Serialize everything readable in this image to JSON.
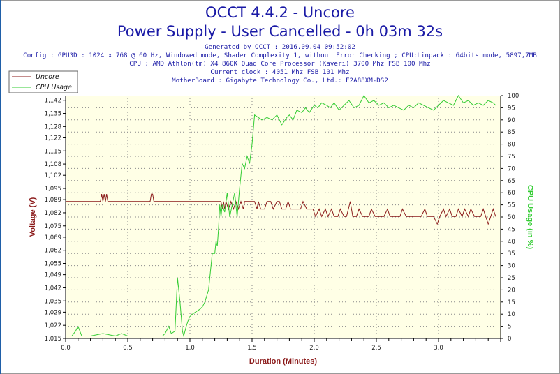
{
  "header": {
    "title": "OCCT 4.4.2 - Uncore",
    "subtitle": "Power Supply - User Cancelled - 0h 03m 32s",
    "generated": "Generated by OCCT : 2016.09.04 09:52:02",
    "config": "Config : GPU3D : 1024 x 768 @ 60 Hz, Windowed mode, Shader Complexity 1, without Error Checking ; CPU:Linpack : 64bits mode, 5897,7MB",
    "cpu": "CPU : AMD Athlon(tm) X4 860K Quad Core Processor (Kaveri) 3700 Mhz FSB 100 Mhz",
    "clock": "Current clock : 4051 Mhz FSB 101 Mhz",
    "motherboard": "MotherBoard : Gigabyte Technology Co., Ltd.: F2A88XM-DS2"
  },
  "colors": {
    "uncore": "#8b1a1a",
    "cpu_usage": "#33cc33",
    "title": "#1a1aa6",
    "plot_background": "#ffffe6"
  },
  "chart_data": {
    "type": "line",
    "xlabel": "Duration (Minutes)",
    "ylabel_left": "Voltage (V)",
    "ylabel_right": "CPU Usage (in %)",
    "xlim": [
      0,
      3.5
    ],
    "ylim_left": [
      1.015,
      1.1445
    ],
    "ylim_right": [
      0,
      100
    ],
    "x_ticks": [
      "0,0",
      "0,5",
      "1,0",
      "1,5",
      "2,0",
      "2,5",
      "3,0"
    ],
    "y_left_ticks": [
      "1,015",
      "1,022",
      "1,029",
      "1,035",
      "1,042",
      "1,049",
      "1,055",
      "1,062",
      "1,069",
      "1,075",
      "1,082",
      "1,089",
      "1,095",
      "1,102",
      "1,108",
      "1,115",
      "1,122",
      "1,128",
      "1,135",
      "1,142"
    ],
    "y_right_ticks": [
      "0",
      "5",
      "10",
      "15",
      "20",
      "25",
      "30",
      "35",
      "40",
      "45",
      "50",
      "55",
      "60",
      "65",
      "70",
      "75",
      "80",
      "85",
      "90",
      "95",
      "100"
    ],
    "grid": true,
    "legend_position": "top-left",
    "series": [
      {
        "name": "Uncore",
        "axis": "left",
        "x": [
          0,
          0.28,
          0.29,
          0.3,
          0.31,
          0.32,
          0.33,
          0.34,
          0.35,
          0.68,
          0.69,
          0.7,
          0.71,
          0.72,
          1.25,
          1.26,
          1.27,
          1.28,
          1.29,
          1.31,
          1.33,
          1.35,
          1.37,
          1.39,
          1.41,
          1.43,
          1.44,
          1.46,
          1.48,
          1.5,
          1.52,
          1.54,
          1.55,
          1.57,
          1.6,
          1.62,
          1.65,
          1.67,
          1.7,
          1.72,
          1.74,
          1.77,
          1.79,
          1.81,
          1.84,
          1.86,
          1.89,
          1.91,
          1.94,
          1.96,
          1.99,
          2.01,
          2.04,
          2.06,
          2.09,
          2.11,
          2.14,
          2.16,
          2.19,
          2.21,
          2.24,
          2.26,
          2.29,
          2.31,
          2.34,
          2.36,
          2.39,
          2.41,
          2.44,
          2.46,
          2.49,
          2.51,
          2.54,
          2.56,
          2.59,
          2.61,
          2.64,
          2.66,
          2.69,
          2.71,
          2.74,
          2.76,
          2.79,
          2.81,
          2.84,
          2.86,
          2.89,
          2.91,
          2.94,
          2.96,
          2.99,
          3.01,
          3.04,
          3.06,
          3.09,
          3.11,
          3.14,
          3.16,
          3.19,
          3.21,
          3.24,
          3.26,
          3.29,
          3.31,
          3.34,
          3.36,
          3.38,
          3.4,
          3.42,
          3.44,
          3.46
        ],
        "y": [
          1.088,
          1.088,
          1.092,
          1.088,
          1.092,
          1.088,
          1.092,
          1.088,
          1.088,
          1.088,
          1.092,
          1.092,
          1.088,
          1.088,
          1.088,
          1.084,
          1.088,
          1.084,
          1.088,
          1.084,
          1.088,
          1.084,
          1.088,
          1.084,
          1.088,
          1.084,
          1.088,
          1.088,
          1.088,
          1.088,
          1.088,
          1.084,
          1.088,
          1.084,
          1.084,
          1.088,
          1.088,
          1.084,
          1.088,
          1.088,
          1.084,
          1.084,
          1.088,
          1.084,
          1.084,
          1.084,
          1.084,
          1.088,
          1.084,
          1.084,
          1.084,
          1.08,
          1.084,
          1.08,
          1.084,
          1.08,
          1.084,
          1.08,
          1.08,
          1.084,
          1.08,
          1.08,
          1.088,
          1.08,
          1.08,
          1.084,
          1.08,
          1.08,
          1.08,
          1.084,
          1.08,
          1.08,
          1.08,
          1.08,
          1.084,
          1.08,
          1.08,
          1.08,
          1.08,
          1.084,
          1.08,
          1.08,
          1.08,
          1.08,
          1.08,
          1.08,
          1.084,
          1.08,
          1.08,
          1.08,
          1.076,
          1.08,
          1.084,
          1.08,
          1.084,
          1.08,
          1.08,
          1.084,
          1.08,
          1.084,
          1.08,
          1.084,
          1.08,
          1.08,
          1.08,
          1.084,
          1.08,
          1.076,
          1.08,
          1.084,
          1.08
        ]
      },
      {
        "name": "CPU Usage",
        "axis": "right",
        "x": [
          0,
          0.05,
          0.08,
          0.1,
          0.13,
          0.2,
          0.3,
          0.4,
          0.45,
          0.5,
          0.6,
          0.7,
          0.78,
          0.8,
          0.83,
          0.85,
          0.88,
          0.9,
          0.92,
          0.94,
          0.95,
          0.97,
          0.99,
          1.0,
          1.02,
          1.05,
          1.08,
          1.1,
          1.12,
          1.15,
          1.18,
          1.2,
          1.21,
          1.22,
          1.23,
          1.24,
          1.25,
          1.26,
          1.28,
          1.3,
          1.32,
          1.34,
          1.36,
          1.38,
          1.4,
          1.42,
          1.44,
          1.46,
          1.48,
          1.5,
          1.52,
          1.55,
          1.58,
          1.62,
          1.66,
          1.7,
          1.74,
          1.78,
          1.8,
          1.83,
          1.86,
          1.9,
          1.93,
          1.96,
          2.0,
          2.03,
          2.06,
          2.1,
          2.13,
          2.16,
          2.2,
          2.24,
          2.28,
          2.32,
          2.36,
          2.4,
          2.44,
          2.48,
          2.52,
          2.56,
          2.6,
          2.64,
          2.68,
          2.72,
          2.76,
          2.8,
          2.84,
          2.88,
          2.92,
          2.96,
          3.0,
          3.04,
          3.08,
          3.12,
          3.16,
          3.2,
          3.24,
          3.28,
          3.32,
          3.36,
          3.4,
          3.44,
          3.46
        ],
        "y": [
          1,
          1,
          3,
          5,
          1,
          1,
          2,
          1,
          2,
          1,
          1,
          1,
          1,
          2,
          5,
          2,
          3,
          25,
          15,
          3,
          1,
          5,
          8,
          9,
          10,
          11,
          12,
          13,
          15,
          20,
          35,
          35,
          40,
          38,
          45,
          55,
          50,
          55,
          52,
          60,
          50,
          55,
          60,
          50,
          62,
          72,
          70,
          75,
          72,
          80,
          92,
          91,
          90,
          91,
          90,
          92,
          88,
          91,
          92,
          90,
          94,
          93,
          95,
          93,
          96,
          95,
          97,
          96,
          95,
          97,
          94,
          96,
          98,
          95,
          96,
          100,
          97,
          98,
          96,
          97,
          95,
          96,
          95,
          94,
          96,
          95,
          97,
          96,
          95,
          94,
          96,
          98,
          97,
          96,
          100,
          97,
          98,
          96,
          97,
          96,
          98,
          97,
          96
        ]
      }
    ]
  }
}
